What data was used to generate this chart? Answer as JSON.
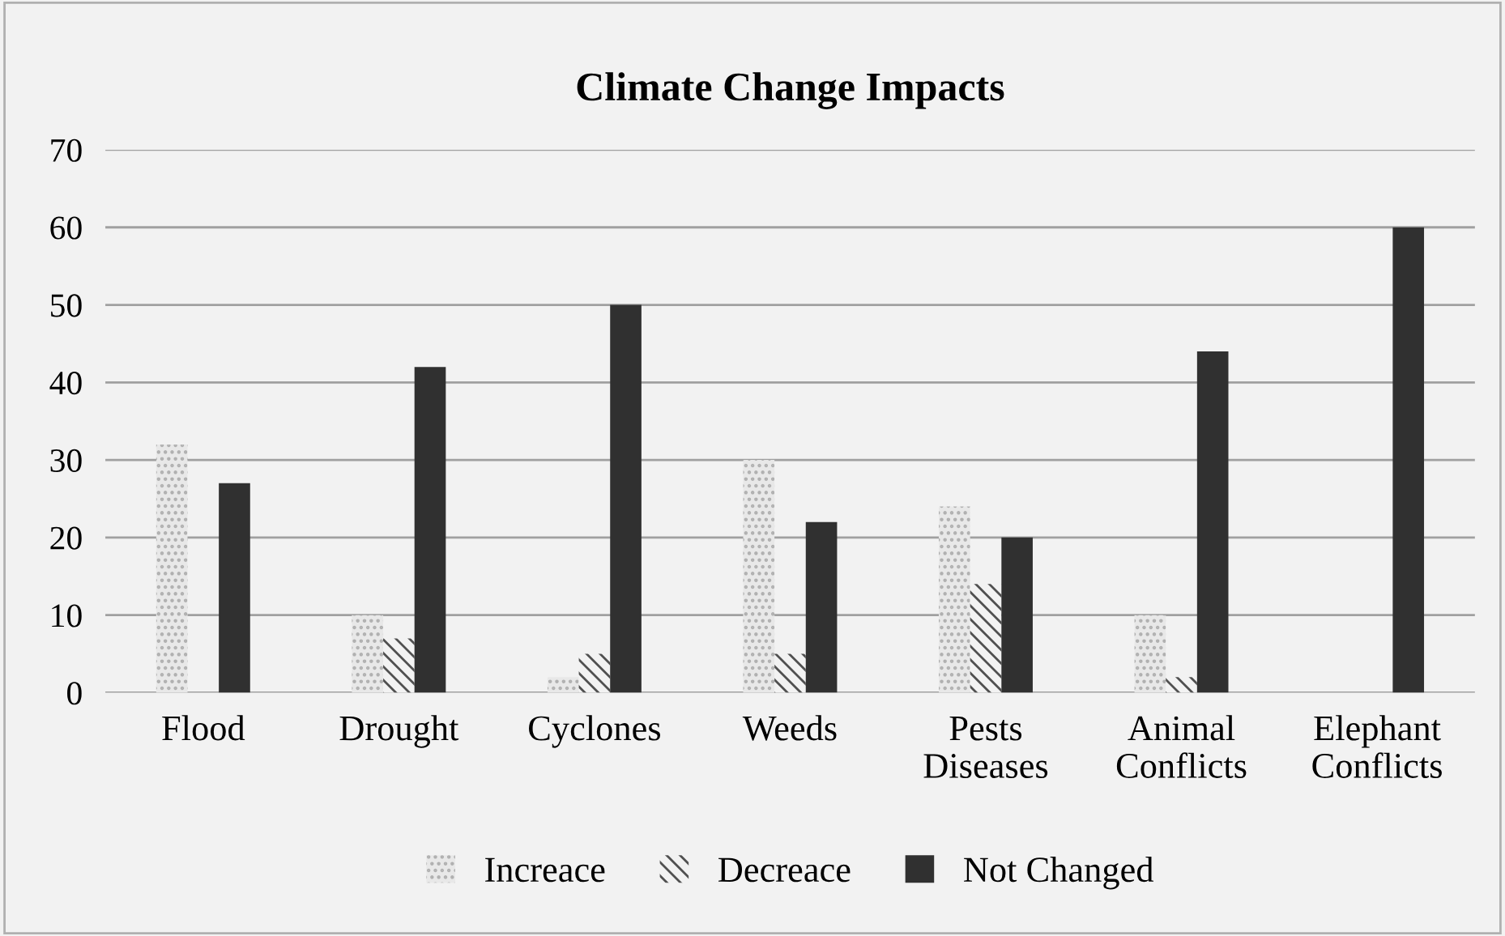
{
  "chart_data": {
    "type": "bar",
    "title": "Climate Change Impacts",
    "categories": [
      "Flood",
      "Drought",
      "Cyclones",
      "Weeds",
      "Pests\nDiseases",
      "Animal\nConflicts",
      "Elephant\nConflicts"
    ],
    "series": [
      {
        "name": "Increace",
        "color": "#b0b0b0",
        "values": [
          32,
          10,
          2,
          30,
          24,
          10,
          null
        ]
      },
      {
        "name": "Decreace",
        "color": "#505050",
        "values": [
          null,
          7,
          5,
          5,
          14,
          2,
          null
        ]
      },
      {
        "name": "Not Changed",
        "color": "#303030",
        "values": [
          27,
          42,
          50,
          22,
          20,
          44,
          60
        ]
      }
    ],
    "ylim": [
      0,
      70
    ],
    "yticks": [
      0,
      10,
      20,
      30,
      40,
      50,
      60,
      70
    ],
    "grid": "y",
    "legend": "bottom"
  }
}
